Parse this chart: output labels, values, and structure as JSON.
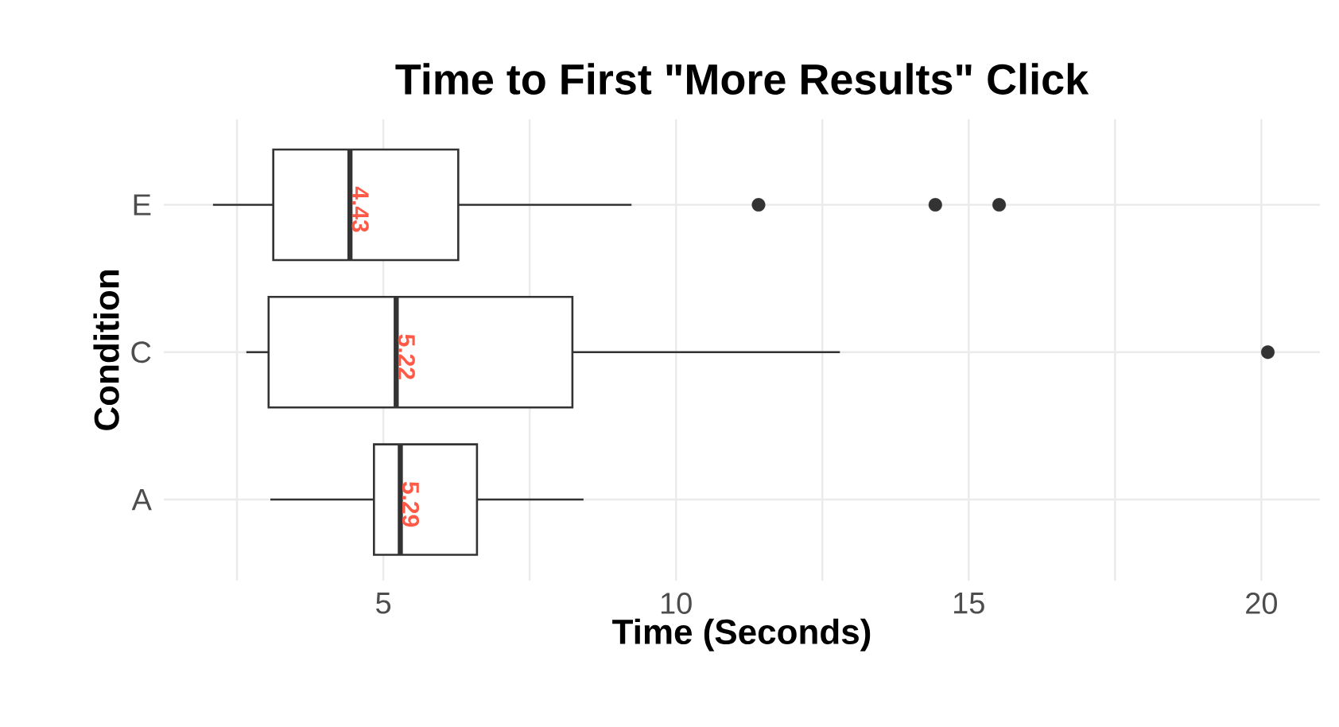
{
  "chart_data": {
    "type": "box",
    "orientation": "horizontal",
    "title": "Time to First \"More Results\" Click",
    "xlabel": "Time (Seconds)",
    "ylabel": "Condition",
    "categories": [
      "E",
      "C",
      "A"
    ],
    "color": "#333333",
    "boxes": [
      {
        "low": 2.09,
        "q1": 3.12,
        "median": 4.43,
        "q3": 6.28,
        "high": 9.24,
        "outliers": [
          11.41,
          14.43,
          15.52
        ]
      },
      {
        "low": 2.66,
        "q1": 3.04,
        "median": 5.22,
        "q3": 8.23,
        "high": 12.8,
        "outliers": [
          20.11
        ]
      },
      {
        "low": 3.07,
        "q1": 4.84,
        "median": 5.29,
        "q3": 6.6,
        "high": 8.42
      }
    ],
    "value_labels": [
      "4.43",
      "5.22",
      "5.29"
    ],
    "xlim": [
      1.25,
      21.0
    ],
    "xticks": [
      {
        "value": 2.5,
        "label": null
      },
      5,
      {
        "value": 7.5,
        "label": null
      },
      10,
      {
        "value": 12.5,
        "label": null
      },
      15,
      {
        "value": 17.5,
        "label": null
      },
      20
    ],
    "grid": true
  }
}
